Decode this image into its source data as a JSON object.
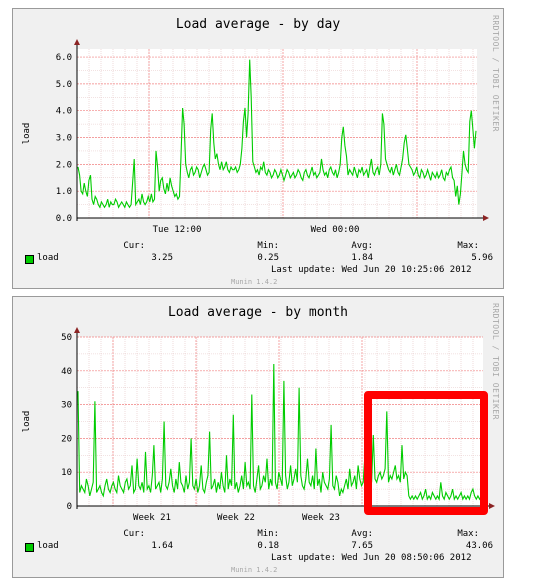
{
  "chart_data": [
    {
      "type": "line",
      "title": "Load average - by day",
      "ylabel": "load",
      "ylim": [
        0,
        6.3
      ],
      "yticks": [
        "0.0",
        "1.0",
        "2.0",
        "3.0",
        "4.0",
        "5.0",
        "6.0"
      ],
      "xticks": [
        "Tue 12:00",
        "Wed 00:00"
      ],
      "grid": true,
      "series": [
        {
          "name": "load",
          "color": "#00cc00",
          "values": [
            1.9,
            1.6,
            1.0,
            0.9,
            1.3,
            1.0,
            0.8,
            1.4,
            1.6,
            0.7,
            0.5,
            0.8,
            0.7,
            0.5,
            0.4,
            0.6,
            0.5,
            0.4,
            0.5,
            0.7,
            0.4,
            0.6,
            0.5,
            0.5,
            0.7,
            0.6,
            0.4,
            0.5,
            0.6,
            0.5,
            0.4,
            0.6,
            0.5,
            0.4,
            0.5,
            1.3,
            2.2,
            0.5,
            0.6,
            0.7,
            0.5,
            0.9,
            0.6,
            0.5,
            0.6,
            0.8,
            0.6,
            0.9,
            0.6,
            0.7,
            2.5,
            1.9,
            1.0,
            1.4,
            1.5,
            1.1,
            0.9,
            1.3,
            1.0,
            1.5,
            1.2,
            1.0,
            0.8,
            0.9,
            0.7,
            0.8,
            2.3,
            4.1,
            3.5,
            2.0,
            1.7,
            1.5,
            1.8,
            1.9,
            1.6,
            1.7,
            1.9,
            1.8,
            1.5,
            1.7,
            1.9,
            2.0,
            1.8,
            1.6,
            1.7,
            3.3,
            3.9,
            2.8,
            2.2,
            2.4,
            2.0,
            1.8,
            2.1,
            1.8,
            1.9,
            2.1,
            1.8,
            1.7,
            1.9,
            1.8,
            1.8,
            1.9,
            1.7,
            1.8,
            2.0,
            2.6,
            3.6,
            4.1,
            3.0,
            3.9,
            5.9,
            4.5,
            2.1,
            1.9,
            1.7,
            1.8,
            1.6,
            1.9,
            1.8,
            2.1,
            1.7,
            1.6,
            1.8,
            1.7,
            1.5,
            1.6,
            1.8,
            1.7,
            1.5,
            1.6,
            1.8,
            1.6,
            1.4,
            1.6,
            1.8,
            1.7,
            1.5,
            1.6,
            1.7,
            1.5,
            1.6,
            1.8,
            1.7,
            1.5,
            1.4,
            1.7,
            1.8,
            1.6,
            1.5,
            1.7,
            1.9,
            1.6,
            1.7,
            1.5,
            1.6,
            1.7,
            2.2,
            1.8,
            1.6,
            1.7,
            1.5,
            1.8,
            1.9,
            1.7,
            1.6,
            1.8,
            1.5,
            1.7,
            2.0,
            3.0,
            3.4,
            2.7,
            2.3,
            1.6,
            1.8,
            1.7,
            1.6,
            1.9,
            1.7,
            1.5,
            1.8,
            1.7,
            1.9,
            1.6,
            1.7,
            1.8,
            1.5,
            1.9,
            2.2,
            1.7,
            1.6,
            1.8,
            1.9,
            1.6,
            2.0,
            3.9,
            3.5,
            2.2,
            2.0,
            1.8,
            1.7,
            1.9,
            1.6,
            1.8,
            2.0,
            1.7,
            1.6,
            1.9,
            2.2,
            2.8,
            3.1,
            2.6,
            2.0,
            1.9,
            1.8,
            1.6,
            1.7,
            1.9,
            1.6,
            1.5,
            1.8,
            1.7,
            1.5,
            1.6,
            1.8,
            1.6,
            1.4,
            1.7,
            1.6,
            1.5,
            1.7,
            1.5,
            1.6,
            1.8,
            1.5,
            1.4,
            1.7,
            1.6,
            1.8,
            1.9,
            1.5,
            1.4,
            0.8,
            1.2,
            0.5,
            0.9,
            1.7,
            2.5,
            2.0,
            1.8,
            1.7,
            3.6,
            4.0,
            3.3,
            2.6,
            3.25
          ]
        }
      ],
      "stats": {
        "cur_label": "Cur:",
        "min_label": "Min:",
        "avg_label": "Avg:",
        "max_label": "Max:",
        "cur": "3.25",
        "min": "0.25",
        "avg": "1.84",
        "max": "5.96"
      },
      "legend": "load",
      "last_update": "Last update: Wed Jun 20 10:25:06 2012",
      "version": "Munin 1.4.2",
      "side_credit": "RRDTOOL / TOBI OETIKER"
    },
    {
      "type": "line",
      "title": "Load average - by month",
      "ylabel": "load",
      "ylim": [
        0,
        50
      ],
      "yticks": [
        "0",
        "10",
        "20",
        "30",
        "40",
        "50"
      ],
      "xticks": [
        "Week 21",
        "Week 22",
        "Week 23"
      ],
      "grid": true,
      "series": [
        {
          "name": "load",
          "color": "#00cc00",
          "values": [
            34,
            4,
            6,
            5,
            4,
            8,
            6,
            3,
            5,
            7,
            31,
            4,
            5,
            6,
            4,
            3,
            6,
            8,
            5,
            4,
            6,
            7,
            5,
            4,
            9,
            6,
            5,
            4,
            7,
            8,
            5,
            6,
            12,
            4,
            5,
            14,
            6,
            5,
            7,
            4,
            16,
            5,
            6,
            4,
            9,
            18,
            5,
            6,
            7,
            4,
            8,
            25,
            6,
            5,
            7,
            11,
            6,
            4,
            8,
            5,
            13,
            7,
            6,
            4,
            9,
            5,
            7,
            20,
            6,
            5,
            8,
            4,
            6,
            12,
            5,
            4,
            7,
            9,
            22,
            5,
            6,
            8,
            4,
            7,
            5,
            10,
            6,
            4,
            15,
            5,
            8,
            6,
            27,
            5,
            7,
            4,
            6,
            9,
            5,
            13,
            6,
            7,
            5,
            33,
            6,
            4,
            8,
            12,
            5,
            6,
            9,
            7,
            14,
            5,
            8,
            6,
            42,
            7,
            5,
            10,
            8,
            6,
            37,
            9,
            5,
            7,
            12,
            6,
            8,
            11,
            7,
            35,
            9,
            6,
            5,
            8,
            14,
            7,
            6,
            9,
            5,
            17,
            6,
            8,
            4,
            10,
            7,
            6,
            5,
            8,
            24,
            6,
            5,
            9,
            7,
            3,
            5,
            4,
            6,
            8,
            5,
            11,
            6,
            7,
            9,
            5,
            12,
            8,
            6,
            7,
            15,
            8,
            6,
            9,
            7,
            21,
            8,
            7,
            9,
            10,
            8,
            9,
            11,
            28,
            7,
            9,
            8,
            10,
            12,
            8,
            9,
            7,
            18,
            8,
            10,
            9,
            3,
            2,
            3,
            2,
            3,
            2,
            3,
            4,
            2,
            3,
            5,
            2,
            3,
            2,
            4,
            3,
            2,
            3,
            2,
            7,
            3,
            2,
            4,
            3,
            2,
            3,
            5,
            2,
            3,
            2,
            3,
            4,
            2,
            3,
            2,
            3,
            2,
            4,
            5,
            3,
            2,
            3,
            2,
            3,
            1.64
          ]
        }
      ],
      "stats": {
        "cur_label": "Cur:",
        "min_label": "Min:",
        "avg_label": "Avg:",
        "max_label": "Max:",
        "cur": "1.64",
        "min": "0.18",
        "avg": "7.65",
        "max": "43.06"
      },
      "legend": "load",
      "last_update": "Last update: Wed Jun 20 08:50:06 2012",
      "version": "Munin 1.4.2",
      "side_credit": "RRDTOOL / TOBI OETIKER"
    }
  ],
  "colors": {
    "series": "#00cc00",
    "highlight": "#ff0000",
    "grid_minor": "#e4c4c4",
    "grid_major": "#f08080"
  }
}
